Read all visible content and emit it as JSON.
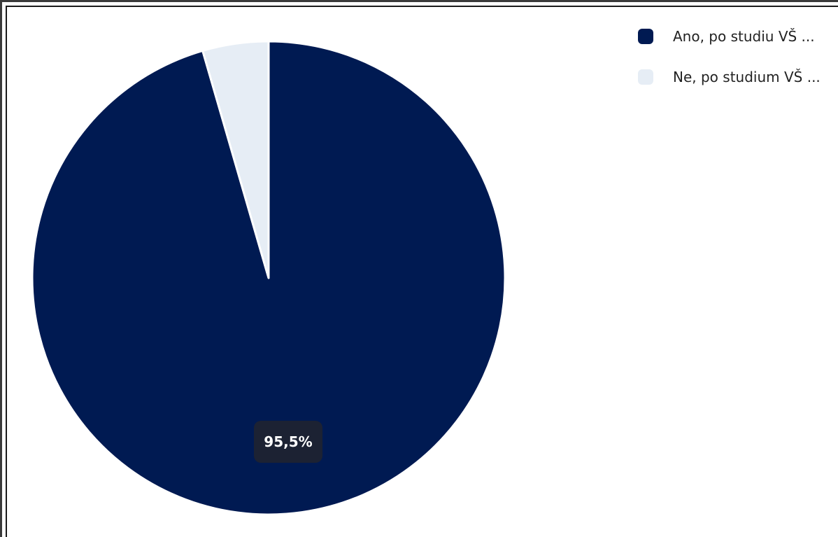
{
  "chart_data": {
    "type": "pie",
    "slices": [
      {
        "label": "Ano, po studiu VŠ ...",
        "value": 95.5,
        "color": "#001a52"
      },
      {
        "label": "Ne, po studium VŠ ...",
        "value": 4.5,
        "color": "#e6edf5"
      }
    ],
    "data_labels": [
      "95,5%"
    ],
    "legend": {
      "placement": "top-right"
    }
  }
}
